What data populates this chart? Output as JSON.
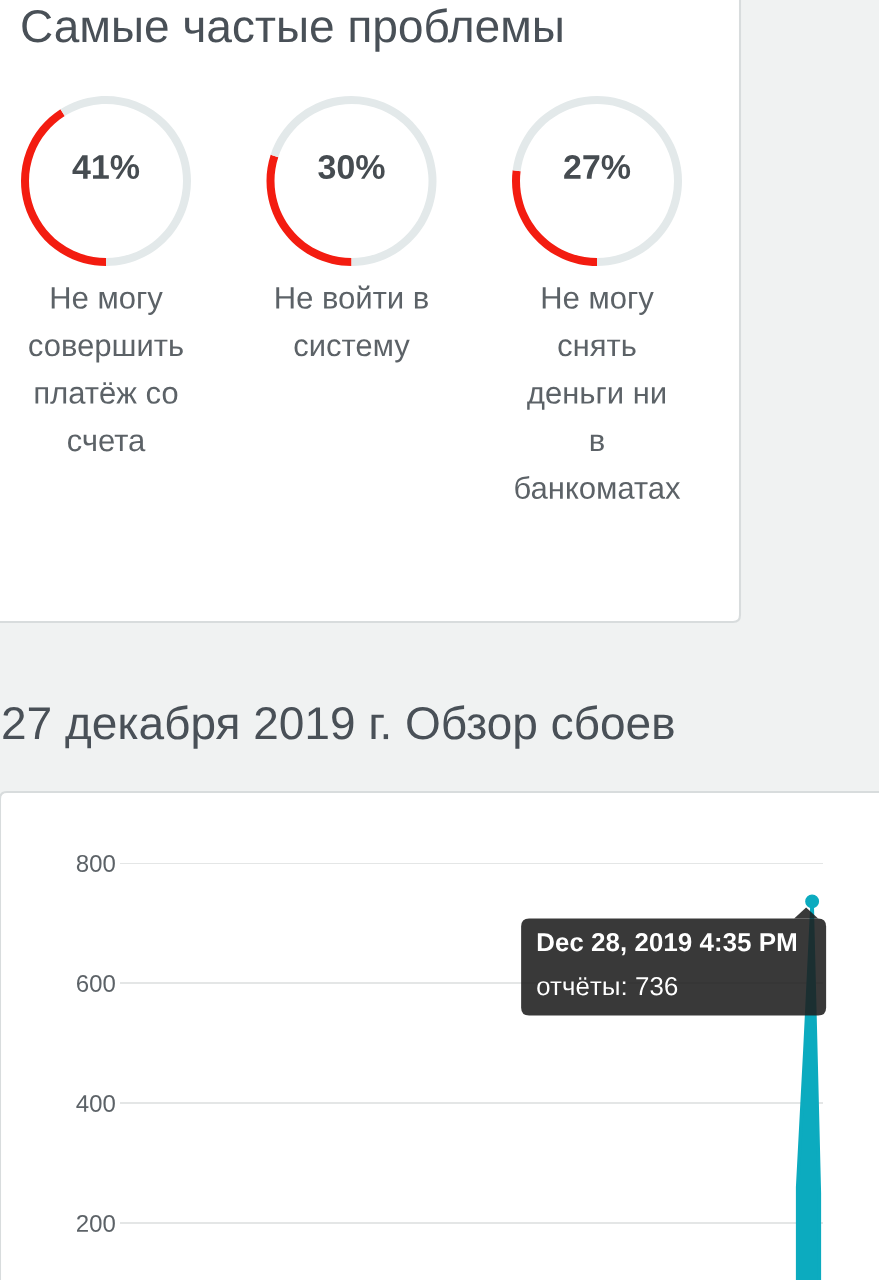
{
  "chart_data": [
    {
      "type": "donut",
      "title": "Самые частые проблемы",
      "categories": [
        "Не могу совершить платёж со счета",
        null
      ],
      "values": [
        41,
        59
      ],
      "colors": [
        "#f31c10",
        "#e3e9ea"
      ],
      "annotations": [
        "41%"
      ]
    },
    {
      "type": "donut",
      "categories": [
        "Не войти в систему",
        null
      ],
      "values": [
        30,
        70
      ],
      "colors": [
        "#f31c10",
        "#e3e9ea"
      ],
      "annotations": [
        "30%"
      ]
    },
    {
      "type": "donut",
      "categories": [
        "Не могу снять деньги ни в банкоматах",
        null
      ],
      "values": [
        27,
        73
      ],
      "colors": [
        "#f31c10",
        "#e3e9ea"
      ],
      "annotations": [
        "27%"
      ]
    },
    {
      "type": "area",
      "title": "27 декабря 2019 г. Обзор сбоев",
      "categories": [
        null,
        null,
        null,
        null,
        null,
        null,
        null,
        null,
        null,
        null,
        null,
        null,
        null,
        null,
        null,
        null,
        null,
        null,
        null,
        null,
        null,
        null,
        null,
        null,
        null,
        null,
        null,
        null,
        null,
        null,
        null,
        null,
        null,
        null,
        null,
        null,
        null,
        null,
        null,
        null,
        null,
        null,
        null,
        null,
        null,
        null,
        null,
        null,
        null,
        null,
        null,
        null,
        null,
        null,
        null,
        null,
        null,
        null,
        null,
        null,
        null,
        null,
        null,
        null,
        null,
        null,
        null,
        null,
        null,
        null,
        null,
        null,
        null,
        null,
        null,
        null,
        null,
        null,
        null,
        null,
        null,
        null,
        null,
        null,
        null,
        null,
        null,
        null,
        null,
        null,
        null,
        null,
        null,
        null,
        null,
        null,
        null
      ],
      "series": [
        {
          "color": "#0cabbf",
          "values": [
            null,
            null,
            null,
            null,
            null,
            null,
            null,
            null,
            null,
            null,
            null,
            null,
            null,
            null,
            null,
            null,
            null,
            null,
            null,
            null,
            null,
            null,
            null,
            null,
            null,
            null,
            null,
            null,
            null,
            null,
            null,
            null,
            null,
            null,
            null,
            null,
            null,
            null,
            null,
            null,
            null,
            null,
            null,
            null,
            null,
            null,
            null,
            null,
            null,
            null,
            null,
            null,
            null,
            null,
            null,
            null,
            null,
            null,
            null,
            null,
            null,
            null,
            null,
            null,
            null,
            null,
            null,
            null,
            null,
            null,
            null,
            null,
            null,
            null,
            null,
            null,
            null,
            null,
            null,
            null,
            null,
            null,
            null,
            null,
            null,
            null,
            null,
            null,
            null,
            null,
            null,
            null,
            null,
            260,
            488,
            736,
            250
          ]
        }
      ],
      "ylim": [
        0,
        800
      ],
      "yticks": [
        200,
        400,
        600,
        800
      ],
      "grid": "y",
      "tick_labels": "y",
      "annotations": [
        "Dec 28, 2019 4:35 PM",
        "отчёты: 736"
      ]
    }
  ]
}
